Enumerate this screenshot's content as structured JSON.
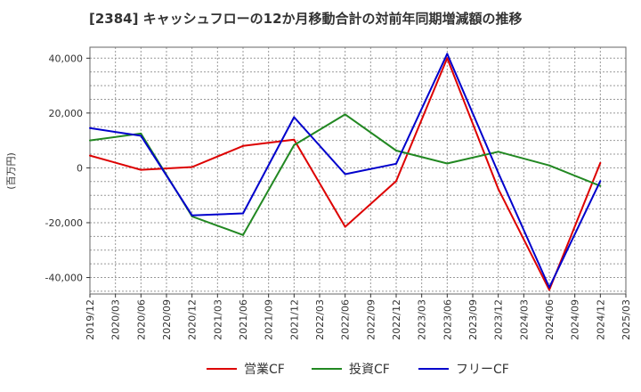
{
  "chart_data": {
    "type": "line",
    "title": "[2384]  キャッシュフローの12か月移動合計の対前年同期増減額の推移",
    "ylabel": "(百万円)",
    "xlabel": "",
    "ylim": [
      -46000,
      44000
    ],
    "yticks": [
      40000,
      20000,
      0,
      -20000,
      -40000
    ],
    "ytick_labels": [
      "40,000",
      "20,000",
      "0",
      "-20,000",
      "-40,000"
    ],
    "x_ticks": [
      "2019/12",
      "2020/03",
      "2020/06",
      "2020/09",
      "2020/12",
      "2021/03",
      "2021/06",
      "2021/09",
      "2021/12",
      "2022/03",
      "2022/06",
      "2022/09",
      "2022/12",
      "2023/03",
      "2023/06",
      "2023/09",
      "2023/12",
      "2024/03",
      "2024/06",
      "2024/09",
      "2024/12",
      "2025/03"
    ],
    "grid": true,
    "legend": "bottom",
    "series": [
      {
        "name": "営業CF",
        "color": "#dd0000",
        "x": [
          "2019/12",
          "2020/06",
          "2020/12",
          "2021/06",
          "2021/12",
          "2022/06",
          "2022/12",
          "2023/06",
          "2023/12",
          "2024/06",
          "2024/12"
        ],
        "values": [
          4500,
          -700,
          300,
          8000,
          10300,
          -21500,
          -4800,
          40000,
          -7700,
          -44500,
          1800
        ]
      },
      {
        "name": "投資CF",
        "color": "#228822",
        "x": [
          "2019/12",
          "2020/06",
          "2020/12",
          "2021/06",
          "2021/12",
          "2022/06",
          "2022/12",
          "2023/06",
          "2023/12",
          "2024/06",
          "2024/12"
        ],
        "values": [
          10000,
          12500,
          -17700,
          -24500,
          8300,
          19500,
          6300,
          1600,
          5900,
          900,
          -6600
        ]
      },
      {
        "name": "フリーCF",
        "color": "#0000cc",
        "x": [
          "2019/12",
          "2020/06",
          "2020/12",
          "2021/06",
          "2021/12",
          "2022/06",
          "2022/12",
          "2023/06",
          "2023/12",
          "2024/06",
          "2024/12"
        ],
        "values": [
          14500,
          11700,
          -17300,
          -16600,
          18500,
          -2300,
          1500,
          41600,
          -1800,
          -43600,
          -4800
        ]
      }
    ]
  }
}
